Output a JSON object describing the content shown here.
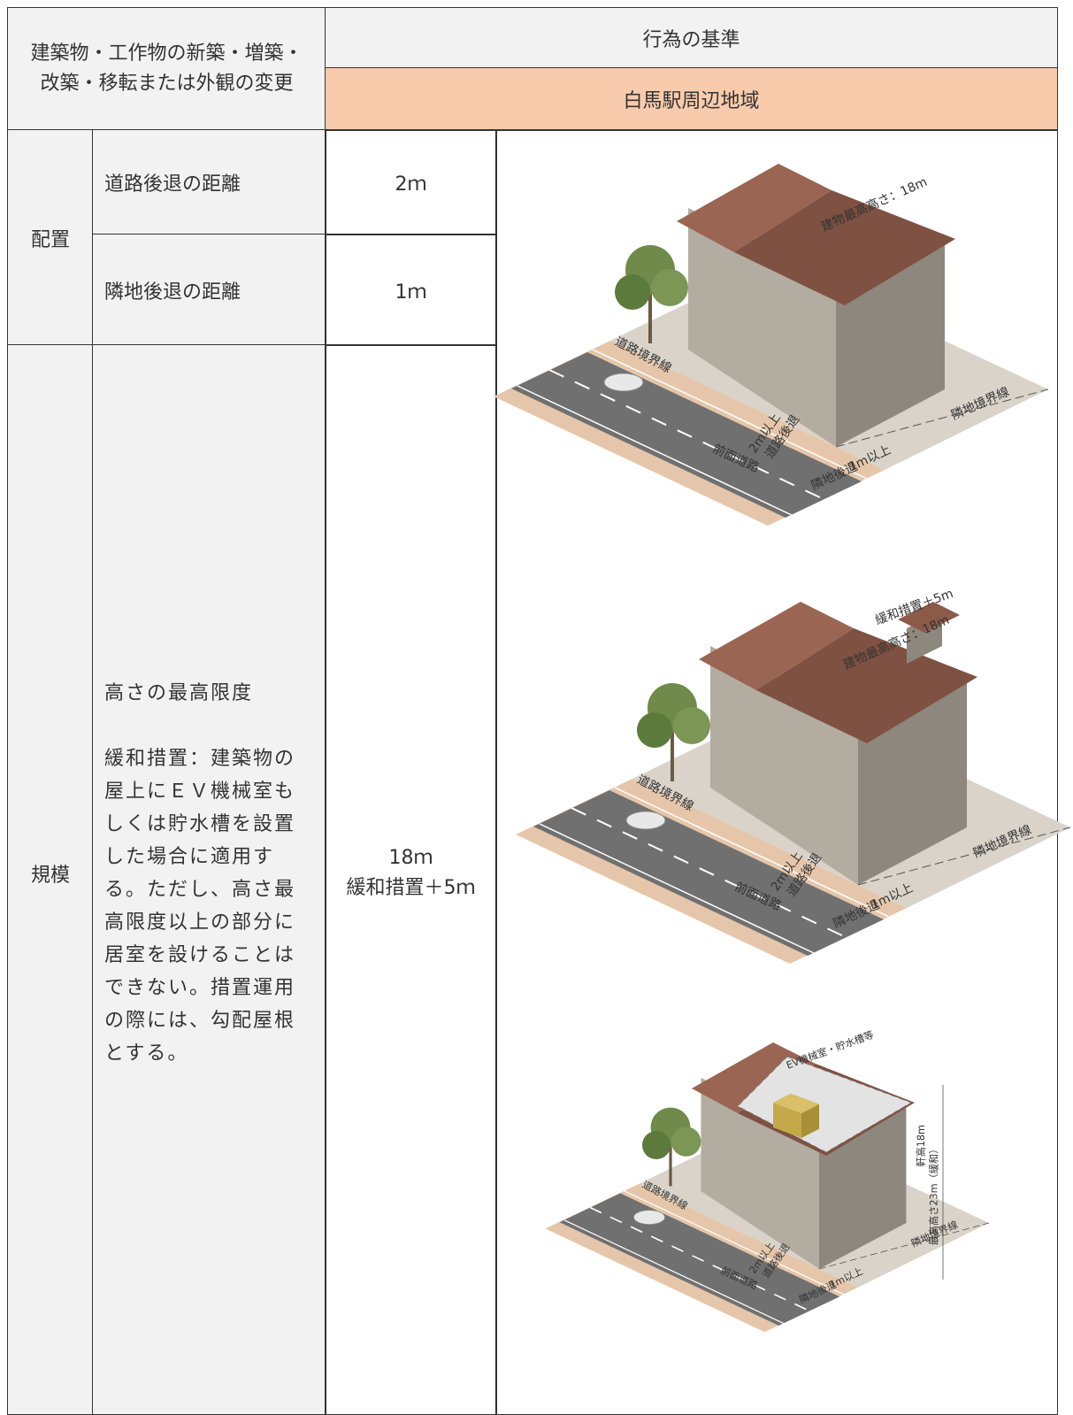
{
  "header": {
    "subject": [
      "建築物・工作物の新築・増築・",
      "改築・移転または外観の変更"
    ],
    "criteria": "行為の基準",
    "area": "白馬駅周辺地域"
  },
  "rows": [
    {
      "category": "配置",
      "item": "道路後退の距離",
      "value": "2ｍ"
    },
    {
      "item": "隣地後退の距離",
      "value": "1ｍ"
    },
    {
      "category": "規模",
      "item": "高さの最高限度",
      "note": "緩和措置：建築物の屋上にＥＶ機械室もしくは貯水槽を設置した場合に適用する。ただし、高さ最高限度以上の部分に居室を設けることはできない。措置運用の際には、勾配屋根とする。",
      "value": [
        "18ｍ",
        "緩和措置＋5ｍ"
      ]
    }
  ],
  "illustrations": [
    {
      "labels": [
        "建物最高高さ：18m",
        "道路境界線",
        "隣地境界線",
        "2m以上",
        "道路後退",
        "前面道路",
        "1m以上",
        "隣地後退"
      ]
    },
    {
      "labels": [
        "建物最高高さ：18m",
        "道路境界線",
        "隣地境界線",
        "2m以上",
        "道路後退",
        "前面道路",
        "1m以上",
        "隣地後退",
        "緩和措置＋5m"
      ]
    },
    {
      "labels": [
        "EV機械室・貯水槽等",
        "道路境界線",
        "隣地境界線",
        "2m以上",
        "道路後退",
        "前面道路",
        "1m以上",
        "隣地後退",
        "軒高18m",
        "最高高さ23m（緩和）"
      ]
    }
  ]
}
